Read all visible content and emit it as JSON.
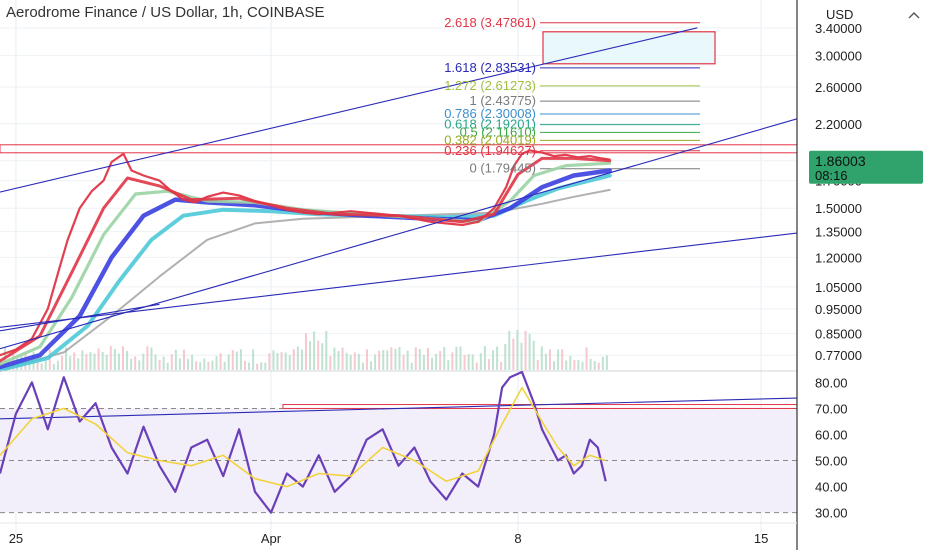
{
  "chart_data": {
    "type": "line",
    "title": "Aerodrome Finance / US Dollar, 1h, COINBASE",
    "currency": "USD",
    "last_price": {
      "value": "1.86003",
      "countdown": "08:16",
      "color": "#2fa36b"
    },
    "colors": {
      "price_fast_red": "#e03546",
      "price_green": "#2e8b57",
      "ema_lightgreen": "#9bd3a4",
      "ema_blue": "#3a3fe0",
      "ema_cyan": "#4ec9d8",
      "ma_gray": "#a8a8a8",
      "trend_line": "#2b2bb8",
      "rsi": "#6a3fb8",
      "rsi_ma": "#f2d33c",
      "rsi_band": "#f3effa"
    },
    "price_axis": {
      "ticks": [
        "3.40000",
        "3.00000",
        "2.60000",
        "2.20000",
        "1.86003",
        "1.70000",
        "1.50000",
        "1.35000",
        "1.20000",
        "1.05000",
        "0.95000",
        "0.85000",
        "0.77000"
      ],
      "scale": "log",
      "range": [
        0.72,
        3.72
      ]
    },
    "rsi_axis": {
      "ticks": [
        "80.00",
        "70.00",
        "60.00",
        "50.00",
        "40.00",
        "30.00"
      ],
      "range": [
        26,
        84
      ]
    },
    "time_axis": {
      "labels": [
        {
          "text": "25",
          "t": 0.02
        },
        {
          "text": "Apr",
          "t": 0.34
        },
        {
          "text": "8",
          "t": 0.65
        },
        {
          "text": "15",
          "t": 0.955
        }
      ]
    },
    "fibonacci": {
      "levels": [
        {
          "text": "2.618 (3.47861)",
          "value": 3.47861,
          "color": "#e03546"
        },
        {
          "text": "1.618 (2.83531)",
          "value": 2.83531,
          "color": "#2b2bb8"
        },
        {
          "text": "1.272 (2.61273)",
          "value": 2.61273,
          "color": "#a0c040"
        },
        {
          "text": "1 (2.43775)",
          "value": 2.43775,
          "color": "#7a7a7a"
        },
        {
          "text": "0.786 (2.30008)",
          "value": 2.30008,
          "color": "#3b8fd0"
        },
        {
          "text": "0.618 (2.19201)",
          "value": 2.19201,
          "color": "#2aa58c"
        },
        {
          "text": "0.5 (2.11610)",
          "value": 2.1161,
          "color": "#3aa845"
        },
        {
          "text": "0.382 (2.04019)",
          "value": 2.04019,
          "color": "#99aa22"
        },
        {
          "text": "0.236 (1.94627)",
          "value": 1.94627,
          "color": "#e03546"
        },
        {
          "text": "0 (1.79445)",
          "value": 1.79445,
          "color": "#7a7a7a"
        }
      ]
    },
    "series": [
      {
        "name": "",
        "role": "price",
        "color": "#e03546",
        "points": [
          [
            0.0,
            0.77
          ],
          [
            0.02,
            0.79
          ],
          [
            0.04,
            0.83
          ],
          [
            0.06,
            0.95
          ],
          [
            0.075,
            1.15
          ],
          [
            0.085,
            1.3
          ],
          [
            0.1,
            1.5
          ],
          [
            0.115,
            1.62
          ],
          [
            0.13,
            1.7
          ],
          [
            0.14,
            1.85
          ],
          [
            0.155,
            1.92
          ],
          [
            0.165,
            1.78
          ],
          [
            0.18,
            1.74
          ],
          [
            0.2,
            1.7
          ],
          [
            0.215,
            1.62
          ],
          [
            0.23,
            1.56
          ],
          [
            0.245,
            1.54
          ],
          [
            0.26,
            1.58
          ],
          [
            0.28,
            1.61
          ],
          [
            0.3,
            1.59
          ],
          [
            0.32,
            1.55
          ],
          [
            0.34,
            1.52
          ],
          [
            0.36,
            1.49
          ],
          [
            0.38,
            1.47
          ],
          [
            0.4,
            1.46
          ],
          [
            0.42,
            1.47
          ],
          [
            0.44,
            1.48
          ],
          [
            0.46,
            1.47
          ],
          [
            0.48,
            1.46
          ],
          [
            0.5,
            1.45
          ],
          [
            0.52,
            1.43
          ],
          [
            0.54,
            1.41
          ],
          [
            0.56,
            1.4
          ],
          [
            0.58,
            1.39
          ],
          [
            0.6,
            1.41
          ],
          [
            0.62,
            1.5
          ],
          [
            0.635,
            1.65
          ],
          [
            0.645,
            1.82
          ],
          [
            0.655,
            1.92
          ],
          [
            0.665,
            1.95
          ],
          [
            0.68,
            1.93
          ],
          [
            0.695,
            1.9
          ],
          [
            0.71,
            1.91
          ],
          [
            0.725,
            1.89
          ],
          [
            0.74,
            1.9
          ],
          [
            0.755,
            1.88
          ],
          [
            0.765,
            1.87
          ]
        ]
      },
      {
        "name": "",
        "role": "ema-fast",
        "color": "#e03546",
        "points": [
          [
            0.0,
            0.75
          ],
          [
            0.05,
            0.84
          ],
          [
            0.09,
            1.12
          ],
          [
            0.13,
            1.5
          ],
          [
            0.16,
            1.72
          ],
          [
            0.2,
            1.66
          ],
          [
            0.24,
            1.56
          ],
          [
            0.3,
            1.57
          ],
          [
            0.36,
            1.5
          ],
          [
            0.42,
            1.46
          ],
          [
            0.5,
            1.45
          ],
          [
            0.58,
            1.41
          ],
          [
            0.62,
            1.46
          ],
          [
            0.65,
            1.75
          ],
          [
            0.68,
            1.88
          ],
          [
            0.72,
            1.88
          ],
          [
            0.765,
            1.86
          ]
        ]
      },
      {
        "name": "",
        "role": "ema-mid",
        "color": "#9bd3a4",
        "points": [
          [
            0.0,
            0.74
          ],
          [
            0.05,
            0.8
          ],
          [
            0.09,
            1.0
          ],
          [
            0.13,
            1.33
          ],
          [
            0.17,
            1.6
          ],
          [
            0.21,
            1.62
          ],
          [
            0.26,
            1.55
          ],
          [
            0.32,
            1.54
          ],
          [
            0.38,
            1.49
          ],
          [
            0.46,
            1.46
          ],
          [
            0.54,
            1.43
          ],
          [
            0.6,
            1.41
          ],
          [
            0.64,
            1.55
          ],
          [
            0.67,
            1.74
          ],
          [
            0.71,
            1.82
          ],
          [
            0.765,
            1.84
          ]
        ]
      },
      {
        "name": "",
        "role": "ema-slow",
        "color": "#3a3fe0",
        "points": [
          [
            0.0,
            0.73
          ],
          [
            0.05,
            0.77
          ],
          [
            0.1,
            0.92
          ],
          [
            0.14,
            1.2
          ],
          [
            0.18,
            1.45
          ],
          [
            0.22,
            1.56
          ],
          [
            0.26,
            1.54
          ],
          [
            0.32,
            1.52
          ],
          [
            0.38,
            1.48
          ],
          [
            0.46,
            1.45
          ],
          [
            0.54,
            1.43
          ],
          [
            0.6,
            1.42
          ],
          [
            0.64,
            1.5
          ],
          [
            0.68,
            1.65
          ],
          [
            0.72,
            1.74
          ],
          [
            0.765,
            1.78
          ]
        ]
      },
      {
        "name": "",
        "role": "ema-slower",
        "color": "#4ec9d8",
        "points": [
          [
            0.0,
            0.72
          ],
          [
            0.06,
            0.76
          ],
          [
            0.11,
            0.88
          ],
          [
            0.15,
            1.08
          ],
          [
            0.19,
            1.3
          ],
          [
            0.23,
            1.45
          ],
          [
            0.28,
            1.49
          ],
          [
            0.34,
            1.48
          ],
          [
            0.4,
            1.46
          ],
          [
            0.48,
            1.45
          ],
          [
            0.56,
            1.44
          ],
          [
            0.62,
            1.45
          ],
          [
            0.66,
            1.55
          ],
          [
            0.7,
            1.64
          ],
          [
            0.765,
            1.74
          ]
        ]
      },
      {
        "name": "",
        "role": "ma-long",
        "color": "#a8a8a8",
        "points": [
          [
            0.0,
            0.72
          ],
          [
            0.08,
            0.78
          ],
          [
            0.14,
            0.92
          ],
          [
            0.2,
            1.1
          ],
          [
            0.26,
            1.3
          ],
          [
            0.32,
            1.4
          ],
          [
            0.38,
            1.43
          ],
          [
            0.44,
            1.44
          ],
          [
            0.5,
            1.45
          ],
          [
            0.56,
            1.46
          ],
          [
            0.62,
            1.47
          ],
          [
            0.68,
            1.53
          ],
          [
            0.72,
            1.58
          ],
          [
            0.765,
            1.63
          ]
        ]
      }
    ],
    "trendlines": [
      {
        "from": [
          -0.01,
          1.6
        ],
        "to": [
          0.875,
          3.4
        ]
      },
      {
        "from": [
          -0.01,
          0.785
        ],
        "to": [
          1.0,
          2.25
        ]
      },
      {
        "from": [
          -0.01,
          0.87
        ],
        "to": [
          1.0,
          1.34
        ]
      },
      {
        "from": [
          0.0,
          0.86
        ],
        "to": [
          0.2,
          0.97
        ]
      }
    ],
    "rsi": {
      "overbought": 70,
      "oversold": 30,
      "midline": 50,
      "series": [
        {
          "name": "",
          "role": "rsi",
          "points": [
            [
              0.0,
              45
            ],
            [
              0.02,
              68
            ],
            [
              0.04,
              80
            ],
            [
              0.06,
              62
            ],
            [
              0.08,
              82
            ],
            [
              0.1,
              65
            ],
            [
              0.12,
              72
            ],
            [
              0.14,
              55
            ],
            [
              0.16,
              45
            ],
            [
              0.18,
              63
            ],
            [
              0.2,
              48
            ],
            [
              0.22,
              38
            ],
            [
              0.24,
              55
            ],
            [
              0.26,
              58
            ],
            [
              0.28,
              44
            ],
            [
              0.3,
              62
            ],
            [
              0.32,
              38
            ],
            [
              0.34,
              30
            ],
            [
              0.36,
              45
            ],
            [
              0.38,
              40
            ],
            [
              0.4,
              52
            ],
            [
              0.42,
              38
            ],
            [
              0.44,
              44
            ],
            [
              0.46,
              58
            ],
            [
              0.48,
              62
            ],
            [
              0.5,
              48
            ],
            [
              0.52,
              55
            ],
            [
              0.54,
              42
            ],
            [
              0.56,
              35
            ],
            [
              0.58,
              45
            ],
            [
              0.6,
              40
            ],
            [
              0.62,
              60
            ],
            [
              0.63,
              78
            ],
            [
              0.64,
              82
            ],
            [
              0.655,
              84
            ],
            [
              0.67,
              72
            ],
            [
              0.68,
              62
            ],
            [
              0.69,
              56
            ],
            [
              0.7,
              50
            ],
            [
              0.71,
              52
            ],
            [
              0.72,
              45
            ],
            [
              0.73,
              48
            ],
            [
              0.74,
              58
            ],
            [
              0.75,
              55
            ],
            [
              0.76,
              42
            ]
          ]
        },
        {
          "name": "",
          "role": "rsi-ma",
          "points": [
            [
              0.0,
              52
            ],
            [
              0.04,
              66
            ],
            [
              0.08,
              70
            ],
            [
              0.12,
              64
            ],
            [
              0.16,
              53
            ],
            [
              0.2,
              50
            ],
            [
              0.24,
              48
            ],
            [
              0.28,
              52
            ],
            [
              0.32,
              43
            ],
            [
              0.36,
              40
            ],
            [
              0.4,
              45
            ],
            [
              0.44,
              44
            ],
            [
              0.48,
              55
            ],
            [
              0.52,
              50
            ],
            [
              0.56,
              42
            ],
            [
              0.6,
              46
            ],
            [
              0.63,
              64
            ],
            [
              0.655,
              78
            ],
            [
              0.68,
              65
            ],
            [
              0.7,
              55
            ],
            [
              0.72,
              48
            ],
            [
              0.74,
              52
            ],
            [
              0.76,
              50
            ]
          ]
        }
      ],
      "trendline": {
        "from": [
          0.0,
          66
        ],
        "to": [
          1.0,
          74
        ]
      },
      "resistance_box": {
        "from": 0.355,
        "to": 1.0,
        "low": 70,
        "high": 71.5
      }
    }
  }
}
